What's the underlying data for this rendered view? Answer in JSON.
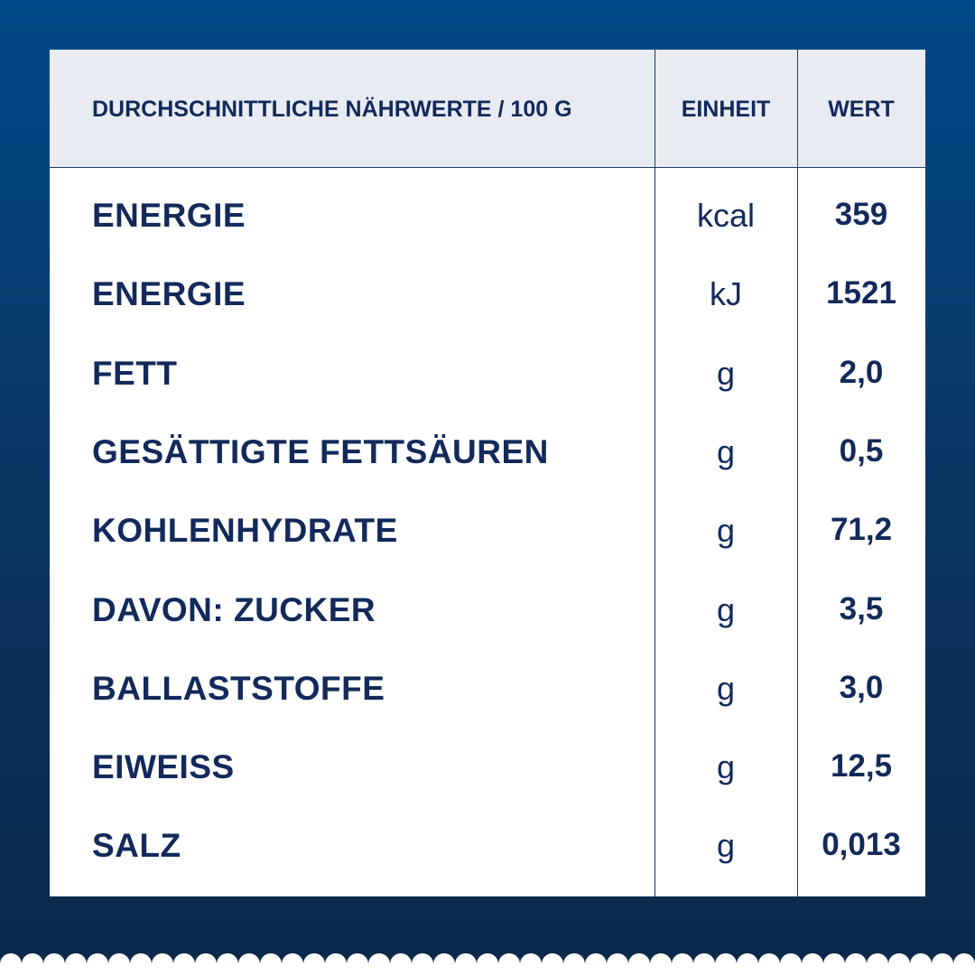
{
  "table": {
    "header": [
      "DURCHSCHNITTLICHE NÄHRWERTE / 100 G",
      "EINHEIT",
      "WERT"
    ],
    "rows": [
      [
        "ENERGIE",
        "kcal",
        "359"
      ],
      [
        "ENERGIE",
        "kJ",
        "1521"
      ],
      [
        "FETT",
        "g",
        "2,0"
      ],
      [
        "GESÄTTIGTE FETTSÄUREN",
        "g",
        "0,5"
      ],
      [
        "KOHLENHYDRATE",
        "g",
        "71,2"
      ],
      [
        "DAVON: ZUCKER",
        "g",
        "3,5"
      ],
      [
        "BALLASTSTOFFE",
        "g",
        "3,0"
      ],
      [
        "EIWEISS",
        "g",
        "12,5"
      ],
      [
        "SALZ",
        "g",
        "0,013"
      ]
    ]
  }
}
